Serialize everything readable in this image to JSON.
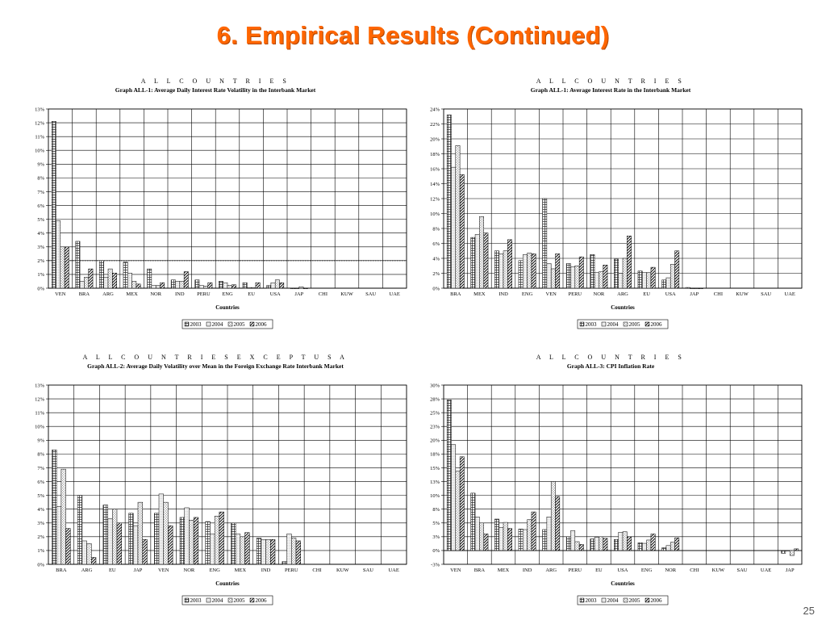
{
  "slide": {
    "title": "6.  Empirical Results (Continued)",
    "page_number": "25"
  },
  "colors": {
    "title": "#ff6600",
    "2003": "#9a9a9a",
    "2004": "#e8e8e8",
    "2005": "#d6d6d6",
    "2006": "#b8b8b8"
  },
  "legend_labels": [
    "2003",
    "2004",
    "2005",
    "2006"
  ],
  "chart_data": [
    {
      "id": "c1",
      "type": "bar",
      "title": "A L L   C O U N T R I E S",
      "subtitle": "Graph ALL-1: Average Daily Interest Rate Volatility in the Interbank Market",
      "xlabel": "Countries",
      "ylabel": "",
      "ylim": [
        0,
        13
      ],
      "yticks": [
        "0%",
        "1%",
        "2%",
        "3%",
        "4%",
        "5%",
        "6%",
        "7%",
        "8%",
        "9%",
        "10%",
        "11%",
        "12%",
        "13%"
      ],
      "reference_line": 2,
      "legend_position": "bottom",
      "categories": [
        "VEN",
        "BRA",
        "ARG",
        "MEX",
        "NOR",
        "IND",
        "PERU",
        "ENG",
        "EU",
        "USA",
        "JAP",
        "CHI",
        "KUW",
        "SAU",
        "UAE"
      ],
      "series": [
        {
          "name": "2003",
          "values": [
            12.1,
            3.4,
            2.0,
            1.9,
            1.4,
            0.6,
            0.6,
            0.5,
            0.4,
            0.2,
            0.0,
            null,
            null,
            null,
            null
          ]
        },
        {
          "name": "2004",
          "values": [
            4.9,
            0.5,
            0.8,
            1.1,
            0.2,
            0.5,
            0.2,
            0.4,
            0.05,
            0.4,
            0.0,
            null,
            null,
            null,
            null
          ]
        },
        {
          "name": "2005",
          "values": [
            3.0,
            0.8,
            1.4,
            0.5,
            0.2,
            0.5,
            0.15,
            0.2,
            0.05,
            0.6,
            0.1,
            null,
            null,
            null,
            null
          ]
        },
        {
          "name": "2006",
          "values": [
            3.0,
            1.4,
            1.1,
            0.3,
            0.4,
            1.2,
            0.4,
            0.25,
            0.4,
            0.4,
            0.0,
            null,
            null,
            null,
            null
          ]
        }
      ]
    },
    {
      "id": "c2",
      "type": "bar",
      "title": "A L L   C O U N T R I E S",
      "subtitle": "Graph ALL-1: Average Interest Rate in the Interbank Market",
      "xlabel": "Countries",
      "ylabel": "",
      "ylim": [
        0,
        24
      ],
      "yticks": [
        "0%",
        "2%",
        "4%",
        "6%",
        "8%",
        "10%",
        "12%",
        "14%",
        "16%",
        "18%",
        "20%",
        "22%",
        "24%"
      ],
      "legend_position": "bottom",
      "categories": [
        "BRA",
        "MEX",
        "IND",
        "ENG",
        "VEN",
        "PERU",
        "NOR",
        "ARG",
        "EU",
        "USA",
        "JAP",
        "CHI",
        "KUW",
        "SAU",
        "UAE"
      ],
      "series": [
        {
          "name": "2003",
          "values": [
            23.2,
            6.8,
            5.0,
            3.7,
            12.0,
            3.3,
            4.5,
            3.9,
            2.3,
            1.1,
            0.1,
            null,
            null,
            null,
            null
          ]
        },
        {
          "name": "2004",
          "values": [
            16.2,
            7.2,
            4.6,
            4.5,
            3.3,
            2.9,
            2.1,
            2.0,
            2.1,
            1.4,
            0.0,
            null,
            null,
            null,
            null
          ]
        },
        {
          "name": "2005",
          "values": [
            19.1,
            9.6,
            5.0,
            4.7,
            2.6,
            3.0,
            2.2,
            4.0,
            2.1,
            3.2,
            0.0,
            null,
            null,
            null,
            null
          ]
        },
        {
          "name": "2006",
          "values": [
            15.2,
            7.4,
            6.5,
            4.6,
            4.6,
            4.2,
            3.1,
            7.0,
            2.8,
            5.0,
            0.0,
            null,
            null,
            null,
            null
          ]
        }
      ]
    },
    {
      "id": "c3",
      "type": "bar",
      "title": "A L L   C O U N T R I E S   E X C E P T   U S A",
      "subtitle": "Graph ALL-2: Average Daily Volatility over Mean in the Foreign Exchange Rate Interbank Market",
      "xlabel": "Countries",
      "ylabel": "",
      "ylim": [
        0,
        13
      ],
      "yticks": [
        "0%",
        "1%",
        "2%",
        "3%",
        "4%",
        "5%",
        "6%",
        "7%",
        "8%",
        "9%",
        "10%",
        "11%",
        "12%",
        "13%"
      ],
      "legend_position": "bottom",
      "categories": [
        "BRA",
        "ARG",
        "EU",
        "JAP",
        "VEN",
        "NOR",
        "ENG",
        "MEX",
        "IND",
        "PERU",
        "CHI",
        "KUW",
        "SAU",
        "UAE"
      ],
      "series": [
        {
          "name": "2003",
          "values": [
            8.3,
            5.0,
            4.3,
            3.7,
            3.7,
            3.4,
            3.1,
            3.0,
            1.9,
            0.2,
            null,
            null,
            null,
            null
          ]
        },
        {
          "name": "2004",
          "values": [
            4.2,
            1.7,
            3.3,
            2.8,
            5.1,
            4.1,
            2.2,
            2.2,
            1.8,
            2.2,
            null,
            null,
            null,
            null
          ]
        },
        {
          "name": "2005",
          "values": [
            6.9,
            1.5,
            4.0,
            4.5,
            4.5,
            3.2,
            3.5,
            2.0,
            1.8,
            1.9,
            null,
            null,
            null,
            null
          ]
        },
        {
          "name": "2006",
          "values": [
            2.6,
            0.5,
            3.0,
            1.8,
            2.8,
            3.4,
            3.8,
            2.3,
            1.8,
            1.7,
            null,
            null,
            null,
            null
          ]
        }
      ]
    },
    {
      "id": "c4",
      "type": "bar",
      "title": "A L L   C O U N T R I E S",
      "subtitle": "Graph ALL-3: CPI Inflation Rate",
      "xlabel": "Countries",
      "ylabel": "",
      "ylim": [
        -2.5,
        30
      ],
      "ytick_values": [
        -2.5,
        0,
        2.5,
        5,
        7.5,
        10,
        12.5,
        15,
        17.5,
        20,
        22.5,
        25,
        27.5,
        30
      ],
      "yticks": [
        "-3%",
        "0%",
        "3%",
        "5%",
        "8%",
        "10%",
        "13%",
        "15%",
        "18%",
        "20%",
        "23%",
        "25%",
        "28%",
        "30%"
      ],
      "legend_position": "bottom",
      "categories": [
        "VEN",
        "BRA",
        "MEX",
        "IND",
        "ARG",
        "PERU",
        "EU",
        "USA",
        "ENG",
        "NOR",
        "CHI",
        "KUW",
        "SAU",
        "UAE",
        "JAP"
      ],
      "series": [
        {
          "name": "2003",
          "values": [
            27.3,
            10.4,
            5.7,
            3.9,
            3.8,
            2.5,
            2.1,
            2.0,
            1.4,
            0.5,
            null,
            null,
            null,
            null,
            -0.5
          ]
        },
        {
          "name": "2004",
          "values": [
            19.2,
            6.1,
            4.2,
            3.8,
            6.1,
            3.6,
            2.4,
            3.3,
            1.3,
            0.9,
            null,
            null,
            null,
            null,
            0.0
          ]
        },
        {
          "name": "2005",
          "values": [
            14.4,
            5.0,
            5.1,
            5.6,
            12.5,
            1.6,
            2.5,
            3.4,
            1.9,
            1.5,
            null,
            null,
            null,
            null,
            -0.9
          ]
        },
        {
          "name": "2006",
          "values": [
            17.0,
            3.0,
            4.0,
            7.0,
            9.8,
            1.1,
            2.2,
            2.5,
            3.0,
            2.3,
            null,
            null,
            null,
            null,
            0.3
          ]
        }
      ]
    }
  ]
}
